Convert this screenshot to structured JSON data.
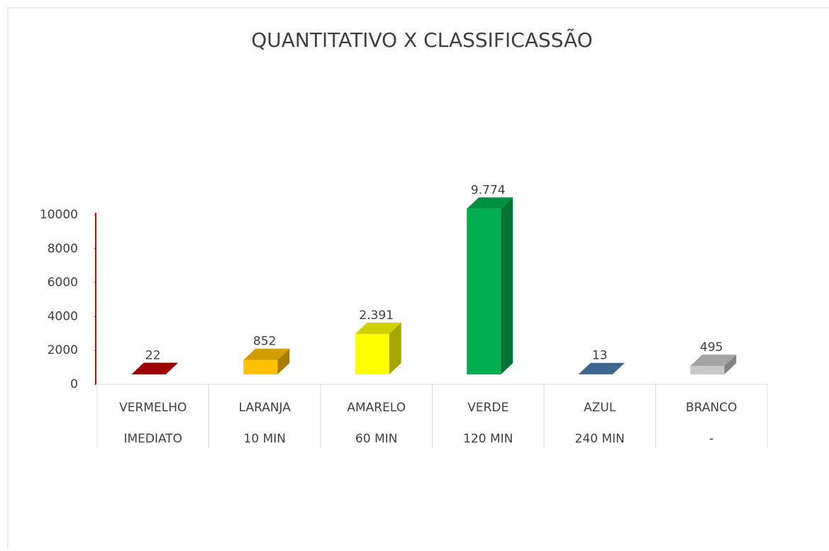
{
  "chart_data": {
    "type": "bar3d",
    "title": "QUANTITATIVO X CLASSIFICASSÃO",
    "categories": [
      [
        "VERMELHO",
        "IMEDIATO"
      ],
      [
        "LARANJA",
        "10 MIN"
      ],
      [
        "AMARELO",
        "60 MIN"
      ],
      [
        "VERDE",
        "120 MIN"
      ],
      [
        "AZUL",
        "240 MIN"
      ],
      [
        "BRANCO",
        "-"
      ]
    ],
    "values": [
      22,
      852,
      2391,
      9774,
      13,
      495
    ],
    "value_labels": [
      "22",
      "852",
      "2.391",
      "9.774",
      "13",
      "495"
    ],
    "colors": [
      "#c00000",
      "#ffc000",
      "#ffff00",
      "#00b050",
      "#4a7ead",
      "#c8c8c8"
    ],
    "ylim": [
      0,
      10000
    ],
    "yticks": [
      0,
      2000,
      4000,
      6000,
      8000,
      10000
    ],
    "axis_color": "#e00000"
  }
}
